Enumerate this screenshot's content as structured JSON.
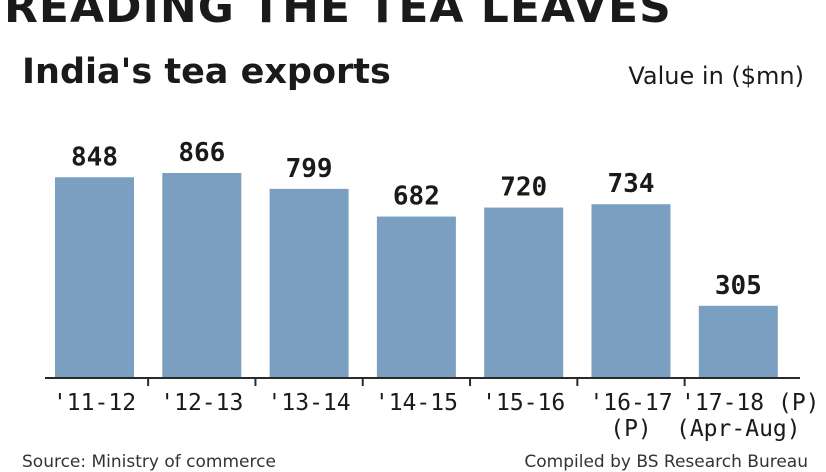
{
  "header": {
    "title": "READING THE TEA LEAVES",
    "subtitle": "India's tea exports",
    "unit": "Value in ($mn)"
  },
  "footer": {
    "source": "Source: Ministry of commerce",
    "credit": "Compiled by BS Research Bureau"
  },
  "colors": {
    "bar": "#7a9fc1"
  },
  "chart_data": {
    "type": "bar",
    "title": "India's tea exports",
    "ylabel": "Value in ($mn)",
    "categories": [
      [
        "'11-12"
      ],
      [
        "'12-13"
      ],
      [
        "'13-14"
      ],
      [
        "'14-15"
      ],
      [
        "'15-16"
      ],
      [
        "'16-17",
        "(P)"
      ],
      [
        "'17-18 (P)",
        "(Apr-Aug)"
      ]
    ],
    "values": [
      848,
      866,
      799,
      682,
      720,
      734,
      305
    ],
    "ylim": [
      0,
      866
    ],
    "grid": false,
    "legend": "none"
  }
}
